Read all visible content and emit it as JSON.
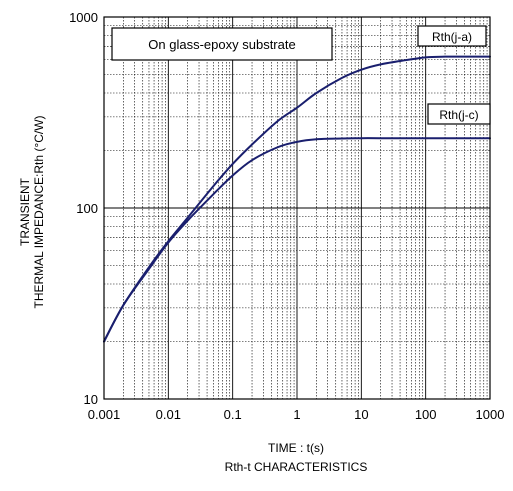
{
  "chart_data": {
    "type": "line",
    "xlabel": "TIME : t(s)",
    "ylabel_lines": [
      "TRANSIENT",
      "THERMAL IMPEDANCE:Rth (°C/W)"
    ],
    "caption": "Rth-t CHARACTERISTICS",
    "annotation": "On glass-epoxy substrate",
    "x_scale": "log",
    "y_scale": "log",
    "xlim": [
      0.001,
      1000
    ],
    "ylim": [
      10,
      1000
    ],
    "grid": true,
    "x_ticks": [
      {
        "value": 0.001,
        "label": "0.001"
      },
      {
        "value": 0.01,
        "label": "0.01"
      },
      {
        "value": 0.1,
        "label": "0.1"
      },
      {
        "value": 1,
        "label": "1"
      },
      {
        "value": 10,
        "label": "10"
      },
      {
        "value": 100,
        "label": "100"
      },
      {
        "value": 1000,
        "label": "1000"
      }
    ],
    "y_ticks": [
      {
        "value": 10,
        "label": "10"
      },
      {
        "value": 100,
        "label": "100"
      },
      {
        "value": 1000,
        "label": "1000"
      }
    ],
    "line_color": "#1a1f6e",
    "series": [
      {
        "name": "Rth(j-a)",
        "x": [
          0.001,
          0.002,
          0.005,
          0.01,
          0.02,
          0.05,
          0.1,
          0.2,
          0.5,
          1,
          2,
          5,
          10,
          20,
          50,
          100,
          200,
          500,
          1000
        ],
        "y": [
          20,
          31,
          49,
          67,
          89,
          130,
          170,
          215,
          285,
          335,
          400,
          480,
          530,
          565,
          595,
          615,
          620,
          620,
          620
        ]
      },
      {
        "name": "Rth(j-c)",
        "x": [
          0.001,
          0.002,
          0.005,
          0.01,
          0.02,
          0.05,
          0.1,
          0.2,
          0.5,
          1,
          2,
          5,
          10,
          20,
          50,
          100,
          200,
          500,
          1000
        ],
        "y": [
          20,
          31,
          48,
          66,
          86,
          118,
          148,
          178,
          208,
          222,
          229,
          231,
          232,
          232,
          232,
          232,
          232,
          232,
          232
        ]
      }
    ]
  }
}
